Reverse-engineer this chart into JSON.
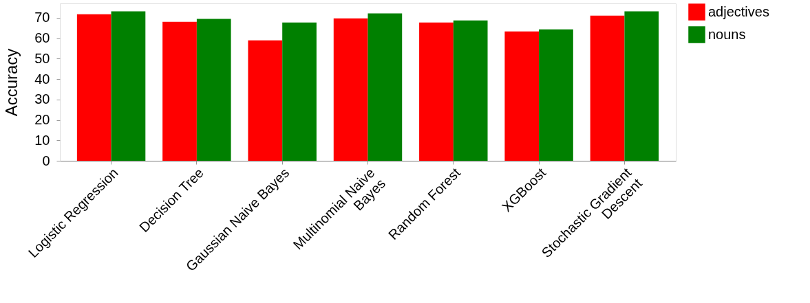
{
  "chart_data": {
    "type": "bar",
    "ylabel": "Accuracy",
    "categories": [
      "Logistic Regression",
      "Decision Tree",
      "Gaussian Naive Bayes",
      "Multinomial Naive\nBayes",
      "Random Forest",
      "XGBoost",
      "Stochastic Gradient\nDescent"
    ],
    "series": [
      {
        "name": "adjectives",
        "color": "#ff0000",
        "values": [
          71.7,
          68.0,
          58.9,
          69.7,
          67.7,
          63.3,
          71.0
        ]
      },
      {
        "name": "nouns",
        "color": "#008000",
        "values": [
          73.1,
          69.4,
          67.7,
          72.1,
          68.7,
          64.3,
          73.1
        ]
      }
    ],
    "ylim": [
      0,
      77
    ],
    "yticks": [
      0,
      10,
      20,
      30,
      40,
      50,
      60,
      70
    ],
    "grid": false,
    "legend": "top right"
  }
}
